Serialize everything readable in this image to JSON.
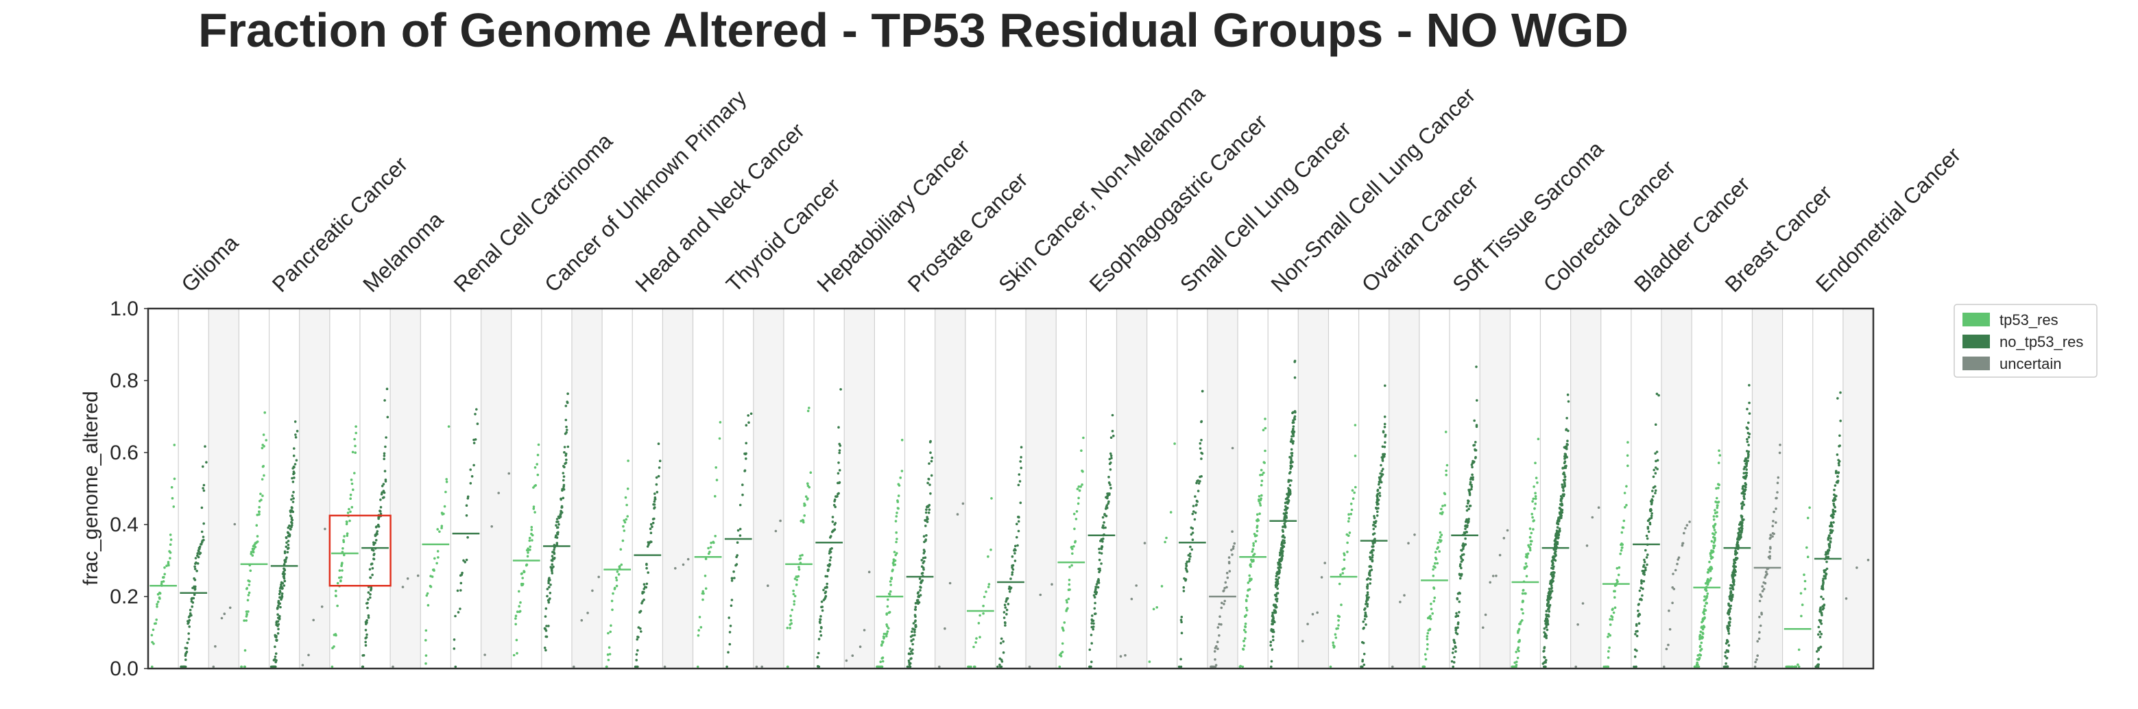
{
  "chart_data": {
    "type": "strip",
    "title": "Fraction of Genome Altered - TP53 Residual Groups - NO WGD",
    "ylabel": "frac_genome_altered",
    "ylim": [
      0,
      1
    ],
    "yticks": [
      "0.0",
      "0.2",
      "0.4",
      "0.6",
      "0.8",
      "1.0"
    ],
    "categories": [
      "Glioma",
      "Pancreatic Cancer",
      "Melanoma",
      "Renal Cell Carcinoma",
      "Cancer of Unknown Primary",
      "Head and Neck Cancer",
      "Thyroid Cancer",
      "Hepatobiliary Cancer",
      "Prostate Cancer",
      "Skin Cancer, Non-Melanoma",
      "Esophagogastric Cancer",
      "Small Cell Lung Cancer",
      "Non-Small Cell Lung Cancer",
      "Ovarian Cancer",
      "Soft Tissue Sarcoma",
      "Colorectal Cancer",
      "Bladder Cancer",
      "Breast Cancer",
      "Endometrial Cancer"
    ],
    "series": [
      {
        "name": "tp53_res",
        "color": "#5fc46f"
      },
      {
        "name": "no_tp53_res",
        "color": "#3a7d4c"
      },
      {
        "name": "uncertain",
        "color": "#7f8c84"
      }
    ],
    "medians": {
      "tp53_res": [
        0.23,
        0.29,
        0.32,
        0.345,
        0.3,
        0.275,
        0.31,
        0.29,
        0.2,
        0.16,
        0.295,
        null,
        0.31,
        0.255,
        0.245,
        0.24,
        0.235,
        0.225,
        0.11
      ],
      "no_tp53_res": [
        0.21,
        0.285,
        0.335,
        0.375,
        0.34,
        0.315,
        0.36,
        0.35,
        0.255,
        0.24,
        0.37,
        0.35,
        0.41,
        0.355,
        0.37,
        0.335,
        0.345,
        0.335,
        0.305
      ],
      "uncertain": [
        null,
        null,
        null,
        null,
        null,
        null,
        null,
        null,
        null,
        null,
        null,
        0.2,
        null,
        null,
        null,
        null,
        null,
        0.28,
        null
      ]
    },
    "point_counts": {
      "tp53_res": [
        40,
        60,
        50,
        30,
        50,
        35,
        25,
        45,
        70,
        20,
        45,
        8,
        80,
        40,
        60,
        80,
        50,
        160,
        25
      ],
      "no_tp53_res": [
        80,
        150,
        90,
        30,
        110,
        60,
        35,
        80,
        110,
        60,
        100,
        60,
        240,
        140,
        120,
        260,
        90,
        250,
        150
      ],
      "uncertain": [
        6,
        5,
        4,
        4,
        5,
        4,
        5,
        5,
        5,
        3,
        5,
        40,
        6,
        5,
        8,
        6,
        20,
        50,
        3
      ]
    },
    "legend": {
      "position": "upper-right-outside"
    },
    "highlight": {
      "category": "Melanoma",
      "color": "#e0301e",
      "ymin": 0.23,
      "ymax": 0.425
    }
  }
}
